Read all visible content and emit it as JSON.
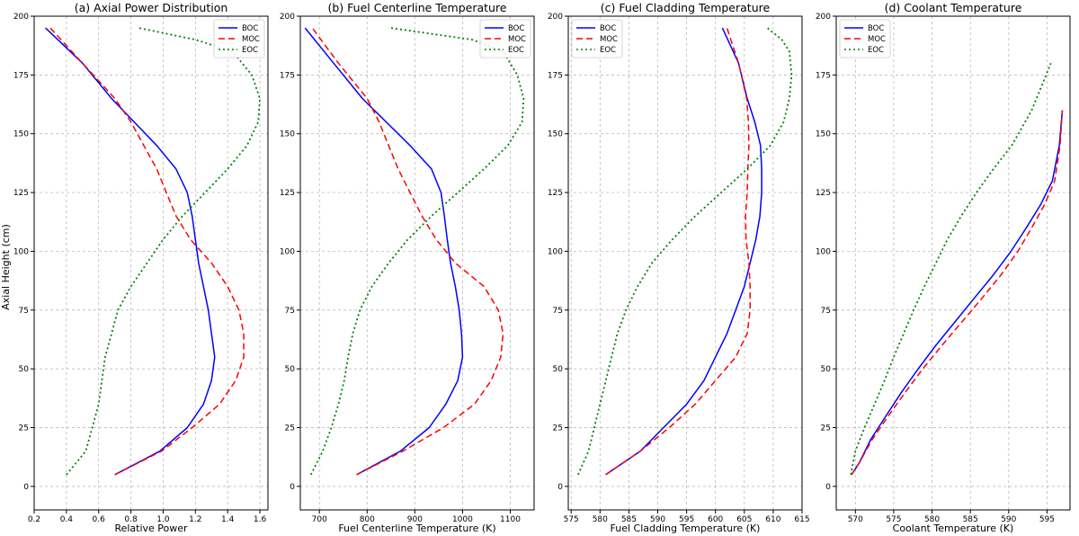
{
  "figure": {
    "y_label": "Axial Height (cm)"
  },
  "styles": {
    "BOC": {
      "color": "#0000ff",
      "dash": ""
    },
    "MOC": {
      "color": "#ff0000",
      "dash": "7,4"
    },
    "EOC": {
      "color": "#008000",
      "dash": "2,3"
    }
  },
  "chart_data": [
    {
      "type": "line",
      "title": "(a) Axial Power Distribution",
      "xlabel": "Relative Power",
      "ylabel": "Axial Height (cm)",
      "xlim": [
        0.2,
        1.65
      ],
      "ylim": [
        -10,
        200
      ],
      "xticks": [
        0.2,
        0.4,
        0.6,
        0.8,
        1.0,
        1.2,
        1.4,
        1.6
      ],
      "xtick_labels": [
        "0.2",
        "0.4",
        "0.6",
        "0.8",
        "1.0",
        "1.2",
        "1.4",
        "1.6"
      ],
      "yticks": [
        0,
        25,
        50,
        75,
        100,
        125,
        150,
        175,
        200
      ],
      "grid": true,
      "legend_position": "top-right",
      "legend": [
        "BOC",
        "MOC",
        "EOC"
      ],
      "series": [
        {
          "name": "BOC",
          "x": [
            0.7,
            0.98,
            1.15,
            1.25,
            1.3,
            1.32,
            1.3,
            1.28,
            1.25,
            1.22,
            1.2,
            1.18,
            1.15,
            1.08,
            0.96,
            0.82,
            0.68,
            0.5,
            0.27
          ],
          "y": [
            5,
            15,
            25,
            35,
            45,
            55,
            65,
            75,
            85,
            95,
            105,
            115,
            125,
            135,
            145,
            155,
            165,
            180,
            195
          ]
        },
        {
          "name": "MOC",
          "x": [
            0.7,
            0.99,
            1.18,
            1.35,
            1.45,
            1.5,
            1.5,
            1.47,
            1.4,
            1.3,
            1.17,
            1.08,
            1.02,
            0.96,
            0.88,
            0.8,
            0.7,
            0.5,
            0.3
          ],
          "y": [
            5,
            15,
            25,
            35,
            45,
            55,
            65,
            75,
            85,
            95,
            105,
            115,
            125,
            135,
            145,
            155,
            165,
            180,
            195
          ]
        },
        {
          "name": "EOC",
          "x": [
            0.4,
            0.52,
            0.56,
            0.6,
            0.62,
            0.64,
            0.68,
            0.72,
            0.8,
            0.9,
            1.0,
            1.12,
            1.26,
            1.4,
            1.52,
            1.59,
            1.6,
            1.55,
            1.43,
            1.2,
            0.85
          ],
          "y": [
            5,
            15,
            25,
            35,
            45,
            55,
            65,
            75,
            85,
            95,
            105,
            115,
            125,
            135,
            145,
            155,
            165,
            175,
            185,
            190,
            195
          ]
        }
      ]
    },
    {
      "type": "line",
      "title": "(b) Fuel Centerline Temperature",
      "xlabel": "Fuel Centerline Temperature (K)",
      "ylabel": "",
      "xlim": [
        660,
        1150
      ],
      "ylim": [
        -10,
        200
      ],
      "xticks": [
        700,
        800,
        900,
        1000,
        1100
      ],
      "xtick_labels": [
        "700",
        "800",
        "900",
        "1000",
        "1100"
      ],
      "yticks": [
        0,
        25,
        50,
        75,
        100,
        125,
        150,
        175,
        200
      ],
      "grid": true,
      "legend_position": "top-right",
      "legend": [
        "BOC",
        "MOC",
        "EOC"
      ],
      "series": [
        {
          "name": "BOC",
          "x": [
            778,
            870,
            930,
            965,
            990,
            1000,
            998,
            993,
            985,
            975,
            968,
            962,
            955,
            935,
            890,
            840,
            790,
            730,
            670
          ],
          "y": [
            5,
            15,
            25,
            35,
            45,
            55,
            65,
            75,
            85,
            95,
            105,
            115,
            125,
            135,
            145,
            155,
            165,
            180,
            195
          ]
        },
        {
          "name": "MOC",
          "x": [
            778,
            875,
            960,
            1025,
            1060,
            1080,
            1085,
            1075,
            1045,
            985,
            945,
            915,
            890,
            865,
            845,
            825,
            800,
            740,
            685
          ],
          "y": [
            5,
            15,
            25,
            35,
            45,
            55,
            65,
            75,
            85,
            95,
            105,
            115,
            125,
            135,
            145,
            155,
            165,
            180,
            195
          ]
        },
        {
          "name": "EOC",
          "x": [
            682,
            707,
            725,
            740,
            752,
            760,
            770,
            785,
            810,
            845,
            885,
            935,
            990,
            1045,
            1095,
            1125,
            1128,
            1115,
            1085,
            1020,
            850
          ],
          "y": [
            5,
            15,
            25,
            35,
            45,
            55,
            65,
            75,
            85,
            95,
            105,
            115,
            125,
            135,
            145,
            155,
            165,
            175,
            185,
            190,
            195
          ]
        }
      ]
    },
    {
      "type": "line",
      "title": "(c) Fuel Cladding Temperature",
      "xlabel": "Fuel Cladding Temperature (K)",
      "ylabel": "",
      "xlim": [
        574.5,
        615
      ],
      "ylim": [
        -10,
        200
      ],
      "xticks": [
        575,
        580,
        585,
        590,
        595,
        600,
        605,
        610,
        615
      ],
      "xtick_labels": [
        "575",
        "580",
        "585",
        "590",
        "595",
        "600",
        "605",
        "610",
        "615"
      ],
      "yticks": [
        0,
        25,
        50,
        75,
        100,
        125,
        150,
        175,
        200
      ],
      "grid": true,
      "legend_position": "top-left",
      "legend": [
        "BOC",
        "MOC",
        "EOC"
      ],
      "series": [
        {
          "name": "BOC",
          "x": [
            581,
            587,
            591,
            595,
            598,
            600,
            602,
            603.5,
            605,
            606,
            607,
            607.7,
            608,
            608,
            607.8,
            606.8,
            605.5,
            604,
            601.2
          ],
          "y": [
            5,
            15,
            25,
            35,
            45,
            55,
            65,
            75,
            85,
            95,
            105,
            115,
            125,
            135,
            145,
            155,
            165,
            180,
            195
          ]
        },
        {
          "name": "MOC",
          "x": [
            581,
            587,
            592,
            596.5,
            600,
            603.5,
            605.5,
            606,
            606,
            605.8,
            605.3,
            605.2,
            605.5,
            605.6,
            605.8,
            605.7,
            605.4,
            604,
            602
          ],
          "y": [
            5,
            15,
            25,
            35,
            45,
            55,
            65,
            75,
            85,
            95,
            105,
            115,
            125,
            135,
            145,
            155,
            165,
            180,
            195
          ]
        },
        {
          "name": "EOC",
          "x": [
            576.2,
            578,
            579,
            580,
            581,
            582,
            583,
            584.5,
            586.5,
            589,
            592.5,
            596.5,
            601,
            605.5,
            609.5,
            611.8,
            612.8,
            613.2,
            612.8,
            611.5,
            609
          ],
          "y": [
            5,
            15,
            25,
            35,
            45,
            55,
            65,
            75,
            85,
            95,
            105,
            115,
            125,
            135,
            145,
            155,
            165,
            175,
            185,
            190,
            195
          ]
        }
      ]
    },
    {
      "type": "line",
      "title": "(d) Coolant Temperature",
      "xlabel": "Coolant Temperature (K)",
      "ylabel": "",
      "xlim": [
        567.5,
        598
      ],
      "ylim": [
        -10,
        200
      ],
      "xticks": [
        570,
        575,
        580,
        585,
        590,
        595
      ],
      "xtick_labels": [
        "570",
        "575",
        "580",
        "585",
        "590",
        "595"
      ],
      "yticks": [
        0,
        25,
        50,
        75,
        100,
        125,
        150,
        175,
        200
      ],
      "grid": true,
      "legend_position": "top-left",
      "legend": [
        "BOC",
        "MOC",
        "EOC"
      ],
      "series": [
        {
          "name": "BOC",
          "x": [
            569.5,
            570.5,
            572,
            574,
            576,
            578.2,
            580.5,
            583,
            585.5,
            588,
            590.3,
            592.3,
            594.2,
            595.7,
            596.6,
            597
          ],
          "y": [
            5,
            10,
            20,
            30,
            40,
            50,
            60,
            70,
            80,
            90,
            100,
            110,
            120,
            130,
            145,
            160
          ]
        },
        {
          "name": "MOC",
          "x": [
            569.5,
            570.5,
            572.2,
            574.3,
            576.5,
            578.8,
            581.3,
            583.9,
            586.5,
            589,
            591.2,
            593,
            594.7,
            596,
            596.7,
            597
          ],
          "y": [
            5,
            10,
            20,
            30,
            40,
            50,
            60,
            70,
            80,
            90,
            100,
            110,
            120,
            130,
            145,
            160
          ]
        },
        {
          "name": "EOC",
          "x": [
            569.4,
            570,
            571.2,
            572.5,
            573.8,
            575,
            576.3,
            577.6,
            579,
            580.5,
            582,
            583.8,
            585.8,
            588,
            590.4,
            593,
            595.5
          ],
          "y": [
            5,
            15,
            25,
            35,
            45,
            55,
            65,
            75,
            85,
            95,
            105,
            115,
            125,
            135,
            145,
            160,
            180
          ]
        }
      ]
    }
  ]
}
